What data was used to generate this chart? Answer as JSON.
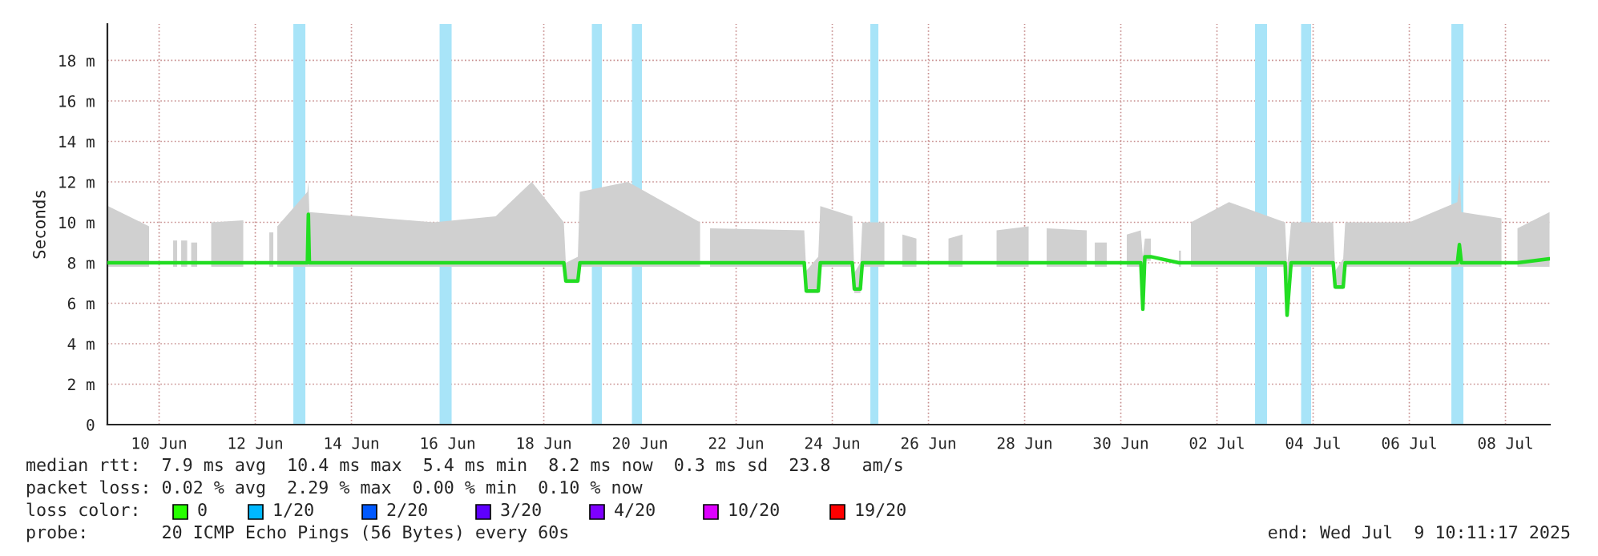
{
  "chart_data": {
    "type": "line",
    "ylabel": "Seconds",
    "x": [
      "2025-06-09T10:30",
      "2025-06-10T07:00",
      "2025-06-10T13:00",
      "2025-06-10T19:00",
      "2025-06-10T21:00",
      "2025-06-10T22:00",
      "2025-06-10T23:00",
      "2025-06-11T02:00",
      "2025-06-11T03:00",
      "2025-06-11T04:00",
      "2025-06-11T07:00",
      "2025-06-11T10:00",
      "2025-06-11T14:00",
      "2025-06-12T06:00",
      "2025-06-12T12:00",
      "2025-06-12T19:00",
      "2025-06-12T21:00",
      "2025-06-12T22:00",
      "2025-06-12T23:00",
      "2025-06-13T14:00",
      "2025-06-13T14:30",
      "2025-06-13T15:00",
      "2025-06-16T05:00",
      "2025-06-17T12:00",
      "2025-06-18T06:00",
      "2025-06-18T22:00",
      "2025-06-18T23:00",
      "2025-06-19T05:00",
      "2025-06-19T06:00",
      "2025-06-20T06:00",
      "2025-06-21T18:00",
      "2025-06-21T21:00",
      "2025-06-21T23:00",
      "2025-06-23T22:00",
      "2025-06-23T23:00",
      "2025-06-24T05:00",
      "2025-06-24T06:00",
      "2025-06-24T22:00",
      "2025-06-24T23:00",
      "2025-06-25T02:00",
      "2025-06-25T03:00",
      "2025-06-25T14:00",
      "2025-06-25T20:00",
      "2025-06-25T23:00",
      "2025-06-26T06:00",
      "2025-06-26T15:00",
      "2025-06-26T22:00",
      "2025-06-27T05:00",
      "2025-06-27T15:00",
      "2025-06-27T22:00",
      "2025-06-28T14:00",
      "2025-06-28T18:00",
      "2025-06-28T23:00",
      "2025-06-29T19:00",
      "2025-06-29T21:00",
      "2025-06-29T23:00",
      "2025-06-30T05:00",
      "2025-06-30T08:00",
      "2025-06-30T15:00",
      "2025-06-30T22:00",
      "2025-06-30T23:00",
      "2025-07-01T00:00",
      "2025-07-01T03:00",
      "2025-07-01T10:00",
      "2025-07-01T17:00",
      "2025-07-01T18:00",
      "2025-07-01T20:00",
      "2025-07-01T23:00",
      "2025-07-02T18:00",
      "2025-07-03T22:00",
      "2025-07-03T23:00",
      "2025-07-04T01:00",
      "2025-07-04T22:00",
      "2025-07-04T23:00",
      "2025-07-05T03:00",
      "2025-07-05T04:00",
      "2025-07-06T12:00",
      "2025-07-07T12:00",
      "2025-07-07T13:00",
      "2025-07-07T14:00",
      "2025-07-08T10:00",
      "2025-07-08T17:00",
      "2025-07-08T18:00",
      "2025-07-09T10:00"
    ],
    "series": [
      {
        "color": "#22dd22",
        "values": [
          8.0,
          8.0,
          null,
          8.0,
          8.0,
          null,
          8.0,
          8.0,
          null,
          8.0,
          8.0,
          null,
          8.0,
          8.0,
          null,
          8.0,
          8.0,
          null,
          8.0,
          8.0,
          10.4,
          8.0,
          8.0,
          8.0,
          8.0,
          8.0,
          7.1,
          7.1,
          8.0,
          8.0,
          8.0,
          null,
          8.0,
          8.0,
          6.6,
          6.6,
          8.0,
          8.0,
          6.7,
          6.7,
          8.0,
          8.0,
          null,
          8.0,
          8.0,
          null,
          8.0,
          8.0,
          null,
          8.0,
          8.0,
          null,
          8.0,
          8.0,
          null,
          8.0,
          8.0,
          null,
          8.0,
          8.0,
          5.7,
          8.3,
          8.3,
          null,
          8.0,
          8.0,
          null,
          8.0,
          8.0,
          8.0,
          5.4,
          8.0,
          8.0,
          6.8,
          6.8,
          8.0,
          8.0,
          8.0,
          8.9,
          8.0,
          8.0,
          null,
          8.0,
          8.2
        ],
        "lower": [
          7.8,
          7.8,
          null,
          7.8,
          7.8,
          null,
          7.8,
          7.8,
          null,
          7.8,
          7.8,
          null,
          7.8,
          7.8,
          null,
          7.8,
          7.8,
          null,
          7.8,
          7.8,
          7.8,
          7.8,
          7.8,
          7.8,
          7.8,
          7.8,
          7.0,
          7.0,
          7.8,
          7.8,
          7.8,
          null,
          7.8,
          7.8,
          6.5,
          6.5,
          7.8,
          7.8,
          6.5,
          6.5,
          7.8,
          7.8,
          null,
          7.8,
          7.8,
          null,
          7.8,
          7.8,
          null,
          7.8,
          7.8,
          null,
          7.8,
          7.8,
          null,
          7.8,
          7.8,
          null,
          7.8,
          7.8,
          5.6,
          8.1,
          8.1,
          null,
          7.8,
          7.8,
          null,
          7.8,
          7.8,
          7.8,
          5.3,
          7.8,
          7.8,
          6.7,
          6.7,
          7.8,
          7.8,
          7.8,
          7.8,
          7.8,
          7.8,
          null,
          7.8,
          7.8
        ],
        "upper": [
          10.8,
          9.8,
          null,
          9.1,
          9.1,
          null,
          9.1,
          9.1,
          null,
          9.0,
          9.0,
          null,
          10.0,
          10.1,
          null,
          9.5,
          9.5,
          null,
          9.8,
          11.5,
          12.0,
          10.5,
          10.0,
          10.3,
          12.0,
          10.0,
          8.0,
          8.3,
          11.5,
          12.0,
          10.0,
          null,
          9.7,
          9.6,
          7.6,
          8.3,
          10.8,
          10.3,
          7.5,
          8.0,
          10.0,
          10.0,
          null,
          9.4,
          9.2,
          null,
          9.2,
          9.4,
          null,
          9.6,
          9.8,
          null,
          9.7,
          9.6,
          null,
          9.0,
          9.0,
          null,
          9.4,
          9.6,
          8.3,
          9.2,
          9.2,
          null,
          8.6,
          8.6,
          null,
          10.0,
          11.0,
          10.0,
          7.8,
          10.0,
          10.0,
          7.6,
          8.2,
          10.0,
          10.0,
          11.0,
          12.5,
          10.5,
          10.2,
          null,
          9.7,
          10.5
        ]
      }
    ],
    "xlim": [
      "2025-06-09T10:11",
      "2025-07-09T10:11"
    ],
    "xticks": [
      {
        "value": "2025-06-10T12:00",
        "label": "10 Jun"
      },
      {
        "value": "2025-06-12T12:00",
        "label": "12 Jun"
      },
      {
        "value": "2025-06-14T12:00",
        "label": "14 Jun"
      },
      {
        "value": "2025-06-16T12:00",
        "label": "16 Jun"
      },
      {
        "value": "2025-06-18T12:00",
        "label": "18 Jun"
      },
      {
        "value": "2025-06-20T12:00",
        "label": "20 Jun"
      },
      {
        "value": "2025-06-22T12:00",
        "label": "22 Jun"
      },
      {
        "value": "2025-06-24T12:00",
        "label": "24 Jun"
      },
      {
        "value": "2025-06-26T12:00",
        "label": "26 Jun"
      },
      {
        "value": "2025-06-28T12:00",
        "label": "28 Jun"
      },
      {
        "value": "2025-06-30T12:00",
        "label": "30 Jun"
      },
      {
        "value": "2025-07-02T12:00",
        "label": "02 Jul"
      },
      {
        "value": "2025-07-04T12:00",
        "label": "04 Jul"
      },
      {
        "value": "2025-07-06T12:00",
        "label": "06 Jul"
      },
      {
        "value": "2025-07-08T12:00",
        "label": "08 Jul"
      }
    ],
    "ylim": [
      0,
      19.8
    ],
    "yticks": [
      0,
      {
        "value": 2,
        "label": "2 m"
      },
      {
        "value": 4,
        "label": "4 m"
      },
      {
        "value": 6,
        "label": "6 m"
      },
      {
        "value": 8,
        "label": "8 m"
      },
      {
        "value": 10,
        "label": "10 m"
      },
      {
        "value": 12,
        "label": "12 m"
      },
      {
        "value": 14,
        "label": "14 m"
      },
      {
        "value": 16,
        "label": "16 m"
      },
      {
        "value": 18,
        "label": "18 m"
      }
    ],
    "bands": [
      {
        "axis": "x",
        "from": "2025-06-13T07:00",
        "to": "2025-06-13T13:00",
        "color": "#a8e4f8"
      },
      {
        "axis": "x",
        "from": "2025-06-16T08:00",
        "to": "2025-06-16T14:00",
        "color": "#a8e4f8"
      },
      {
        "axis": "x",
        "from": "2025-06-19T12:00",
        "to": "2025-06-19T17:00",
        "color": "#a8e4f8"
      },
      {
        "axis": "x",
        "from": "2025-06-20T08:00",
        "to": "2025-06-20T13:00",
        "color": "#a8e4f8"
      },
      {
        "axis": "x",
        "from": "2025-06-25T07:00",
        "to": "2025-06-25T11:00",
        "color": "#a8e4f8"
      },
      {
        "axis": "x",
        "from": "2025-07-03T07:00",
        "to": "2025-07-03T13:00",
        "color": "#a8e4f8"
      },
      {
        "axis": "x",
        "from": "2025-07-04T06:00",
        "to": "2025-07-04T11:00",
        "color": "#a8e4f8"
      },
      {
        "axis": "x",
        "from": "2025-07-07T09:00",
        "to": "2025-07-07T15:00",
        "color": "#a8e4f8"
      }
    ],
    "grid": true,
    "annotations": [
      "median rtt:  7.9 ms avg  10.4 ms max  5.4 ms min  8.2 ms now  0.3 ms sd  23.8   am/s",
      "packet loss: 0.02 % avg  2.29 % max  0.00 % min  0.10 % now",
      "loss color:",
      "0",
      "1/20",
      "2/20",
      "3/20",
      "4/20",
      "10/20",
      "19/20",
      "probe:       20 ICMP Echo Pings (56 Bytes) every 60s",
      "end: Wed Jul  9 10:11:17 2025"
    ]
  }
}
